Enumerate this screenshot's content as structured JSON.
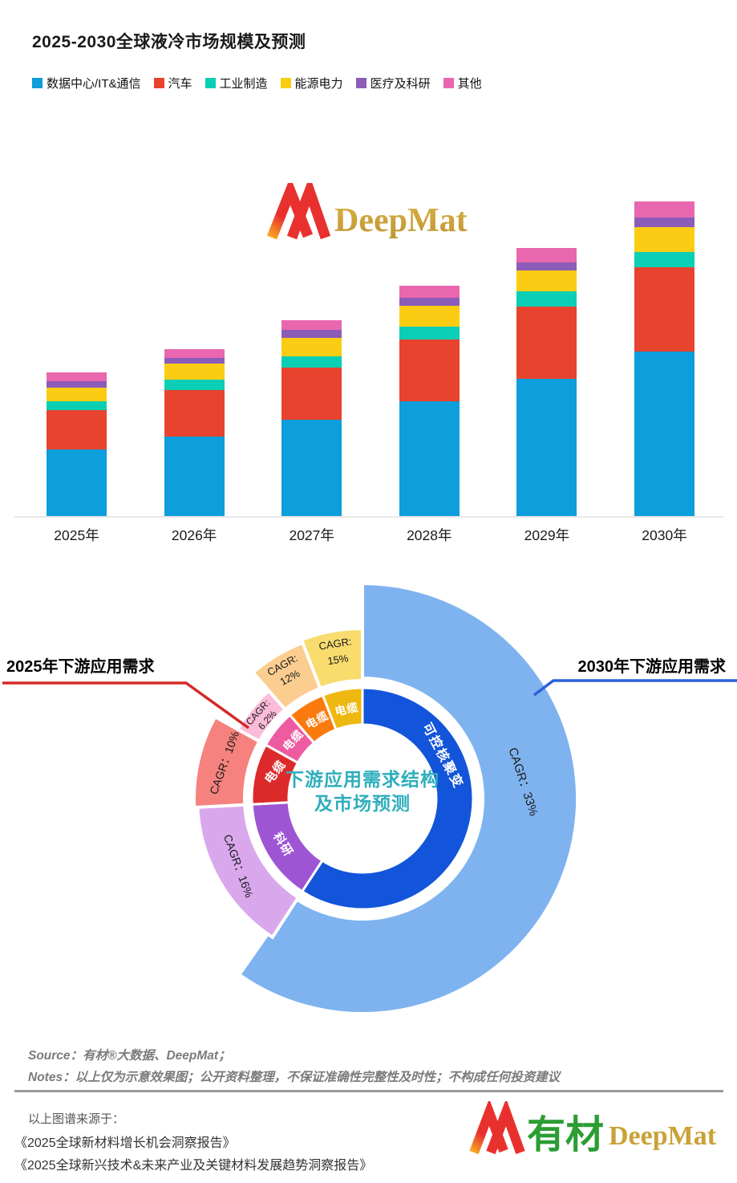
{
  "page": {
    "title": "2025-2030全球液冷市场规模及预测"
  },
  "legend": {
    "items": [
      {
        "id": "datacenter",
        "label": "数据中心/IT&通信",
        "color": "#0D9EDB"
      },
      {
        "id": "auto",
        "label": "汽车",
        "color": "#E8432E"
      },
      {
        "id": "industry",
        "label": "工业制造",
        "color": "#0BCFB4"
      },
      {
        "id": "energy",
        "label": "能源电力",
        "color": "#FACD14"
      },
      {
        "id": "medical",
        "label": "医疗及科研",
        "color": "#8B5CB8"
      },
      {
        "id": "others",
        "label": "其他",
        "color": "#E867AE"
      }
    ]
  },
  "watermark": {
    "brand": "DeepMat"
  },
  "chart_data": [
    {
      "type": "bar",
      "stacked": true,
      "title": "2025-2030全球液冷市场规模及预测",
      "categories": [
        "2025年",
        "2026年",
        "2027年",
        "2028年",
        "2029年",
        "2030年"
      ],
      "units": "relative market-size index (2030 total = 100), no numeric axis shown",
      "ylim": [
        0,
        105
      ],
      "grid": false,
      "legend_position": "top",
      "series": [
        {
          "id": "datacenter",
          "name": "数据中心/IT&通信",
          "color": "#0D9EDB",
          "values": [
            21.2,
            25.2,
            30.6,
            36.5,
            43.7,
            52.5
          ]
        },
        {
          "id": "auto",
          "name": "汽车",
          "color": "#E8432E",
          "values": [
            12.5,
            14.9,
            16.8,
            19.9,
            23.0,
            26.9
          ]
        },
        {
          "id": "industry",
          "name": "工业制造",
          "color": "#0BCFB4",
          "values": [
            3.0,
            3.4,
            3.4,
            4.0,
            4.8,
            4.7
          ]
        },
        {
          "id": "energy",
          "name": "能源电力",
          "color": "#FACD14",
          "values": [
            4.3,
            5.1,
            6.0,
            6.5,
            6.8,
            8.1
          ]
        },
        {
          "id": "medical",
          "name": "医疗及科研",
          "color": "#8B5CB8",
          "values": [
            2.0,
            1.7,
            2.6,
            2.7,
            2.6,
            3.0
          ]
        },
        {
          "id": "others",
          "name": "其他",
          "color": "#E867AE",
          "values": [
            2.7,
            3.0,
            3.1,
            3.7,
            4.6,
            5.1
          ]
        }
      ]
    },
    {
      "type": "sunburst",
      "title": "下游应用需求结构及市场预测",
      "inner_ring_label_2025": "2025年下游应用需求",
      "outer_ring_label_2030": "2030年下游应用需求",
      "segments": [
        {
          "id": "fusion",
          "label": "可控核聚变",
          "cagr": "33%",
          "a0": 0,
          "a1": 213,
          "color": "#1355DA",
          "petal_color": "#7FB3EF",
          "petal_r0": 150,
          "petal_r1": 268,
          "petal_a0": 0,
          "petal_a1": 215,
          "lab": {
            "angle": 62,
            "r": 114,
            "rot": 62,
            "size": 16,
            "spacing": 2
          },
          "cagr_lab": {
            "lines": [
              "CAGR：33%"
            ],
            "radii": [
              202
            ],
            "angle": 84,
            "rot": 72,
            "size": 15
          }
        },
        {
          "id": "research",
          "label": "科研",
          "cagr": "16%",
          "a0": 213,
          "a1": 267,
          "color": "#9E55D4",
          "petal_color": "#D9A8EC",
          "petal_r0": 147,
          "petal_r1": 206,
          "lab": {
            "angle": 240,
            "r": 114,
            "rot": 58,
            "size": 15,
            "spacing": 1
          },
          "cagr_lab": {
            "lines": [
              "CAGR：16%"
            ],
            "radii": [
              176
            ],
            "angle": 241.5,
            "rot": 70,
            "size": 14
          }
        },
        {
          "id": "cable-red",
          "label": "电缆",
          "cagr": "10%",
          "a0": 267,
          "a1": 299,
          "color": "#DC2A2A",
          "petal_color": "#F5827E",
          "petal_r0": 147,
          "petal_r1": 210,
          "lab": {
            "angle": 287,
            "r": 114,
            "rot": -52,
            "size": 15,
            "spacing": 1
          },
          "cagr_lab": {
            "lines": [
              "CAGR：10%"
            ],
            "radii": [
              178
            ],
            "angle": 284.5,
            "rot": -70,
            "size": 14
          }
        },
        {
          "id": "cable-pink",
          "label": "电缆",
          "cagr": "6.2%",
          "a0": 299,
          "a1": 319,
          "color": "#EE5BA0",
          "petal_color": "#FBBCD9",
          "petal_r0": 147,
          "petal_r1": 178,
          "lab": {
            "angle": 310,
            "r": 113,
            "rot": -47,
            "size": 14,
            "spacing": 1
          },
          "cagr_lab": {
            "lines": [
              "CAGR:",
              "6.2%"
            ],
            "radii": [
              169,
              154
            ],
            "angle": 309.5,
            "rot": -48,
            "size": 12
          }
        },
        {
          "id": "cable-orange",
          "label": "电缆",
          "cagr": "12%",
          "a0": 319,
          "a1": 339,
          "color": "#FA7A0E",
          "petal_color": "#FBCE90",
          "petal_r0": 147,
          "petal_r1": 208,
          "lab": {
            "angle": 330,
            "r": 113,
            "rot": -28,
            "size": 14,
            "spacing": 1
          },
          "cagr_lab": {
            "lines": [
              "CAGR:",
              "12%"
            ],
            "radii": [
              194,
              176
            ],
            "angle": 329,
            "rot": -29,
            "size": 13
          }
        },
        {
          "id": "cable-gold",
          "label": "电缆",
          "cagr": "15%",
          "a0": 339,
          "a1": 360,
          "color": "#EFB810",
          "petal_color": "#F8DC6E",
          "petal_r0": 147,
          "petal_r1": 212,
          "lab": {
            "angle": 350,
            "r": 113,
            "rot": -12,
            "size": 14,
            "spacing": 1
          },
          "cagr_lab": {
            "lines": [
              "CAGR:",
              "15%"
            ],
            "radii": [
              196,
              176
            ],
            "angle": 350,
            "rot": -9,
            "size": 13
          }
        }
      ]
    }
  ],
  "donut": {
    "center_line1": "下游应用需求结构",
    "center_line2": "及市场预测",
    "callout_left": "2025年下游应用需求",
    "callout_right": "2030年下游应用需求",
    "callout_left_color": "#D42A2A",
    "callout_right_color": "#2962D9"
  },
  "footer": {
    "source": "Source：有材®大数据、DeepMat；",
    "notes": "Notes：以上仅为示意效果图；公开资料整理，不保证准确性完整性及时性；不构成任何投资建议",
    "origin_label": "以上图谱来源于：",
    "books": [
      "《2025全球新材料增长机会洞察报告》",
      "《2025全球新兴技术&未来产业及关键材料发展趋势洞察报告》"
    ],
    "logo_cn": "有材",
    "logo_en": "DeepMat"
  }
}
